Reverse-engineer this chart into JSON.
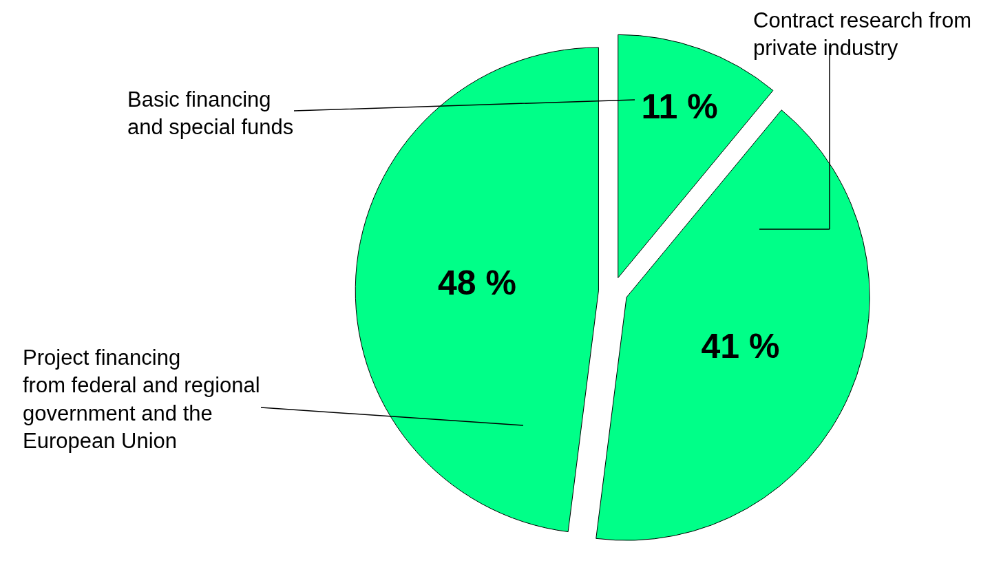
{
  "chart_data": {
    "type": "pie",
    "categories": [
      "Basic financing\nand special funds",
      "Contract research from\nprivate industry",
      "Project financing\nfrom federal and regional\ngovernment and the\nEuropean Union"
    ],
    "values": [
      11,
      41,
      48
    ],
    "value_labels": [
      "11 %",
      "41 %",
      "48 %"
    ],
    "colors": [
      "#00ff88",
      "#00ff88",
      "#00ff88"
    ],
    "legend": false
  }
}
